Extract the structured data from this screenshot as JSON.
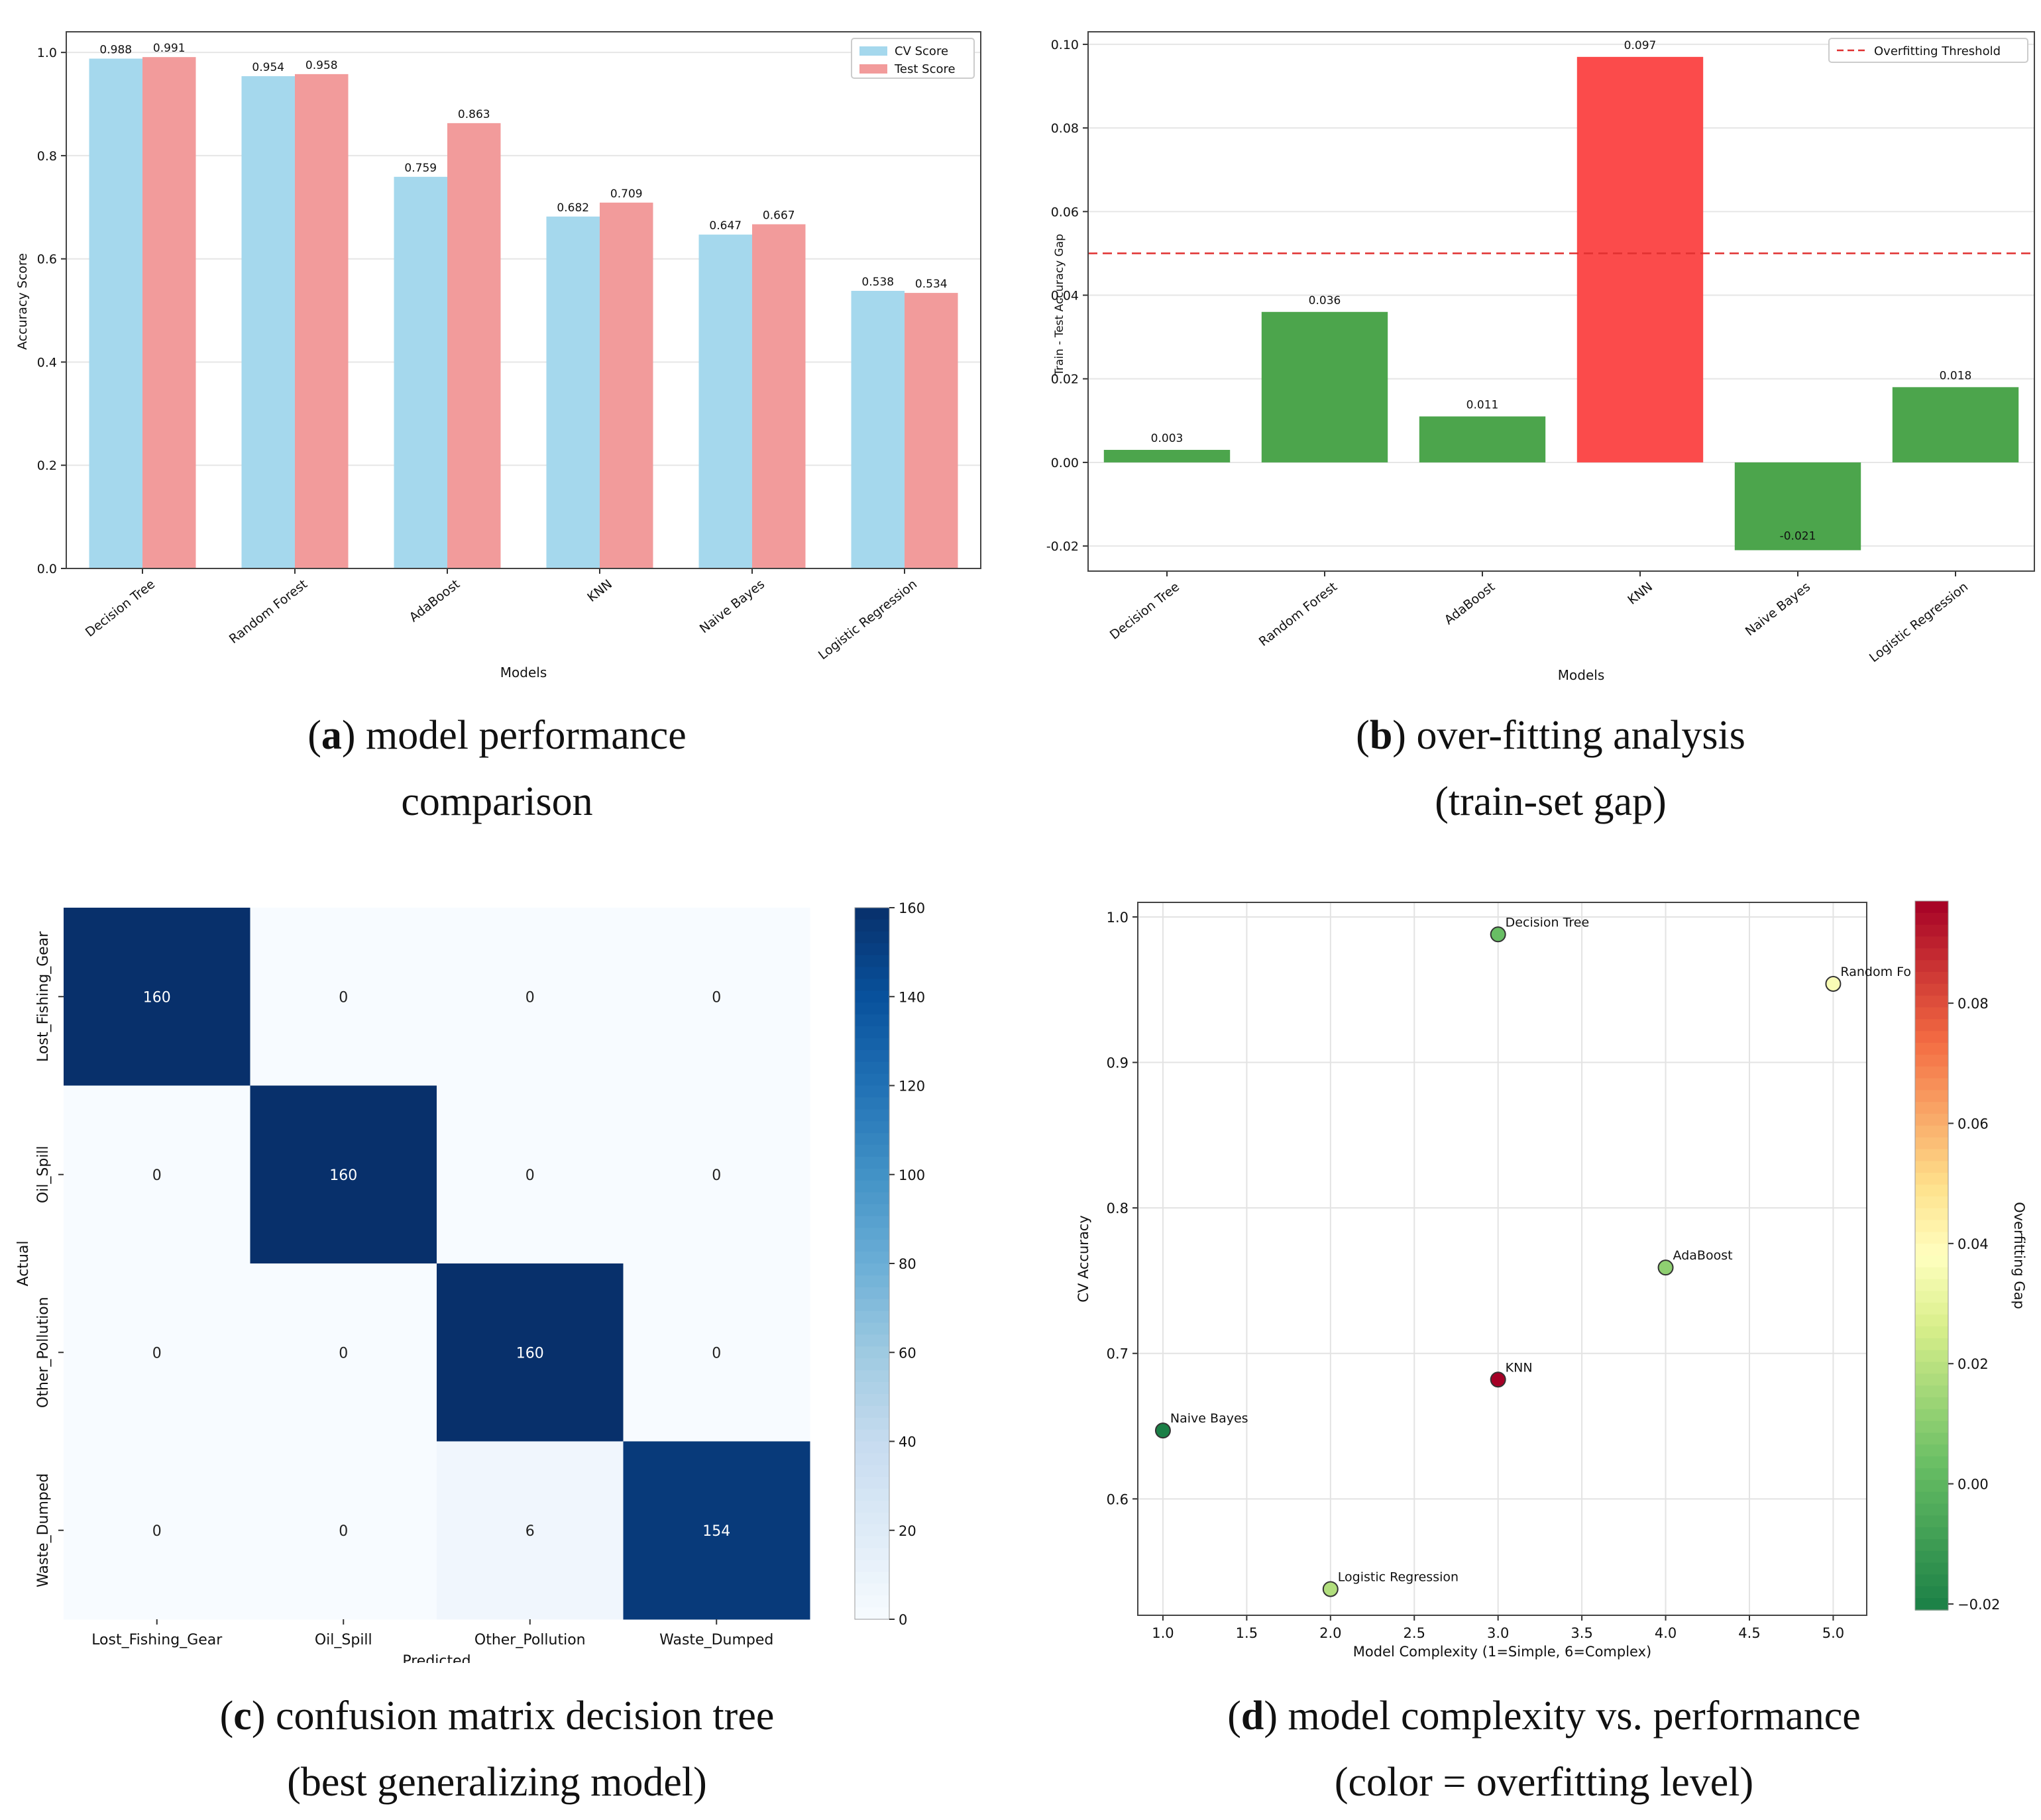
{
  "captions": {
    "a": {
      "letter": "a",
      "line1": " model performance",
      "line2": "comparison"
    },
    "b": {
      "letter": "b",
      "line1": " over-fitting analysis",
      "line2": "(train-set gap)"
    },
    "c": {
      "letter": "c",
      "line1": " confusion matrix decision tree",
      "line2": "(best generalizing model)"
    },
    "d": {
      "letter": "d",
      "line1": " model complexity vs. performance",
      "line2": "(color = overfitting level)"
    }
  },
  "chart_data": [
    {
      "id": "a",
      "type": "bar",
      "title": "",
      "xlabel": "Models",
      "ylabel": "Accuracy Score",
      "categories": [
        "Decision Tree",
        "Random Forest",
        "AdaBoost",
        "KNN",
        "Naive Bayes",
        "Logistic Regression"
      ],
      "series": [
        {
          "name": "CV Score",
          "values": [
            0.988,
            0.954,
            0.759,
            0.682,
            0.647,
            0.538
          ],
          "labels": [
            "0.988",
            "0.954",
            "0.759",
            "0.682",
            "0.647",
            "0.538"
          ],
          "color": "#a5d8ed"
        },
        {
          "name": "Test Score",
          "values": [
            0.991,
            0.958,
            0.863,
            0.709,
            0.667,
            0.534
          ],
          "labels": [
            "0.991",
            "0.958",
            "0.863",
            "0.709",
            "0.667",
            "0.534"
          ],
          "color": "#f29b9b"
        }
      ],
      "ylim": [
        0,
        1.04
      ],
      "yticks": [
        "0.0",
        "0.2",
        "0.4",
        "0.6",
        "0.8",
        "1.0"
      ],
      "grid": true,
      "legend": "top-right"
    },
    {
      "id": "b",
      "type": "bar",
      "title": "",
      "xlabel": "Models",
      "ylabel": "Train - Test Accuracy Gap",
      "categories": [
        "Decision Tree",
        "Random Forest",
        "AdaBoost",
        "KNN",
        "Naive Bayes",
        "Logistic Regression"
      ],
      "values": [
        0.003,
        0.036,
        0.011,
        0.097,
        -0.021,
        0.018
      ],
      "labels": [
        "0.003",
        "0.036",
        "0.011",
        "0.097",
        "-0.021",
        "0.018"
      ],
      "colors": [
        "#4ca54c",
        "#4ca54c",
        "#4ca54c",
        "#fb4b4b",
        "#4ca54c",
        "#4ca54c"
      ],
      "threshold": 0.05,
      "threshold_label": "Overfitting Threshold",
      "ylim": [
        -0.026,
        0.103
      ],
      "yticks": [
        "-0.02",
        "0.00",
        "0.02",
        "0.04",
        "0.06",
        "0.08",
        "0.10"
      ],
      "grid": true,
      "legend": "top-right"
    },
    {
      "id": "c",
      "type": "heatmap",
      "xlabel": "Predicted",
      "ylabel": "Actual",
      "labels": [
        "Lost_Fishing_Gear",
        "Oil_Spill",
        "Other_Pollution",
        "Waste_Dumped"
      ],
      "matrix": [
        [
          160,
          0,
          0,
          0
        ],
        [
          0,
          160,
          0,
          0
        ],
        [
          0,
          0,
          160,
          0
        ],
        [
          0,
          0,
          6,
          154
        ]
      ],
      "colorbar_ticks": [
        "0",
        "20",
        "40",
        "60",
        "80",
        "100",
        "120",
        "140",
        "160"
      ],
      "vmin": 0,
      "vmax": 160
    },
    {
      "id": "d",
      "type": "scatter",
      "xlabel": "Model Complexity (1=Simple, 6=Complex)",
      "ylabel": "CV Accuracy",
      "points": [
        {
          "label": "Decision Tree",
          "x": 3,
          "y": 0.988,
          "gap": 0.003
        },
        {
          "label": "Random Fo",
          "x": 5,
          "y": 0.954,
          "gap": 0.036
        },
        {
          "label": "AdaBoost",
          "x": 4,
          "y": 0.759,
          "gap": 0.011
        },
        {
          "label": "KNN",
          "x": 3,
          "y": 0.682,
          "gap": 0.097
        },
        {
          "label": "Naive Bayes",
          "x": 1,
          "y": 0.647,
          "gap": -0.021
        },
        {
          "label": "Logistic Regression",
          "x": 2,
          "y": 0.538,
          "gap": 0.018
        }
      ],
      "xlim": [
        0.85,
        5.2
      ],
      "ylim": [
        0.52,
        1.01
      ],
      "xticks": [
        "1.0",
        "1.5",
        "2.0",
        "2.5",
        "3.0",
        "3.5",
        "4.0",
        "4.5",
        "5.0"
      ],
      "yticks": [
        "0.6",
        "0.7",
        "0.8",
        "0.9",
        "1.0"
      ],
      "colorbar_label": "Overfitting Gap",
      "colorbar_ticks": [
        "−0.02",
        "0.00",
        "0.02",
        "0.04",
        "0.06",
        "0.08"
      ],
      "cmin": -0.021,
      "cmax": 0.097,
      "grid": true
    }
  ]
}
